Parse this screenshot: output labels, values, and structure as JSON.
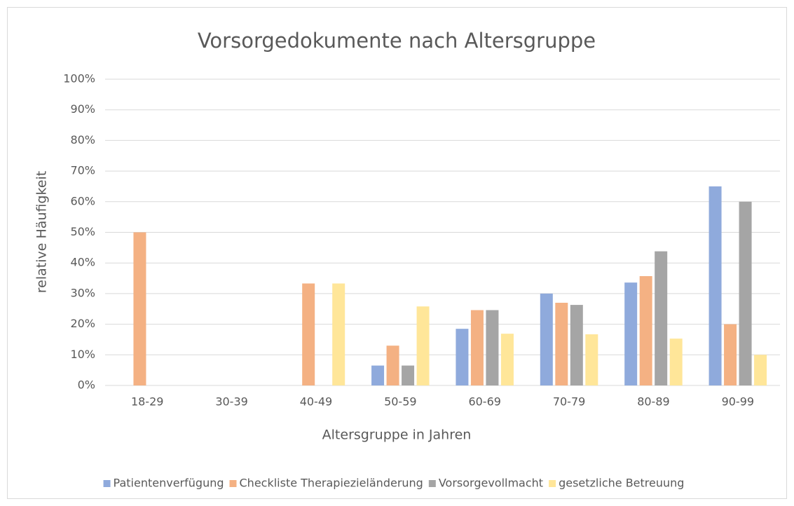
{
  "chart_data": {
    "type": "bar",
    "title": "Vorsorgedokumente nach Altersgruppe",
    "x_label": "Altersgruppe in Jahren",
    "y_label": "relative Häufigkeit",
    "categories": [
      "18-29",
      "30-39",
      "40-49",
      "50-59",
      "60-69",
      "70-79",
      "80-89",
      "90-99"
    ],
    "series": [
      {
        "name": "Patientenverfügung",
        "color": "#8faadc",
        "values": [
          0,
          0,
          0,
          6.5,
          18.5,
          30,
          33.6,
          65
        ]
      },
      {
        "name": "Checkliste Therapiezieländerung",
        "color": "#f4b183",
        "values": [
          50,
          0,
          33.3,
          13,
          24.6,
          27,
          35.7,
          20
        ]
      },
      {
        "name": "Vorsorgevollmacht",
        "color": "#a5a5a5",
        "values": [
          0,
          0,
          0,
          6.5,
          24.6,
          26.3,
          43.8,
          60
        ]
      },
      {
        "name": "gesetzliche Betreuung",
        "color": "#ffe699",
        "values": [
          0,
          0,
          33.3,
          25.8,
          16.9,
          16.7,
          15.3,
          10
        ]
      }
    ],
    "ylim": [
      0,
      100
    ],
    "yticks": [
      {
        "value": 0,
        "label": "0%"
      },
      {
        "value": 10,
        "label": "10%"
      },
      {
        "value": 20,
        "label": "20%"
      },
      {
        "value": 30,
        "label": "30%"
      },
      {
        "value": 40,
        "label": "40%"
      },
      {
        "value": 50,
        "label": "50%"
      },
      {
        "value": 60,
        "label": "60%"
      },
      {
        "value": 70,
        "label": "70%"
      },
      {
        "value": 80,
        "label": "80%"
      },
      {
        "value": 90,
        "label": "90%"
      },
      {
        "value": 100,
        "label": "100%"
      }
    ],
    "grid": true,
    "legend": "bottom"
  }
}
